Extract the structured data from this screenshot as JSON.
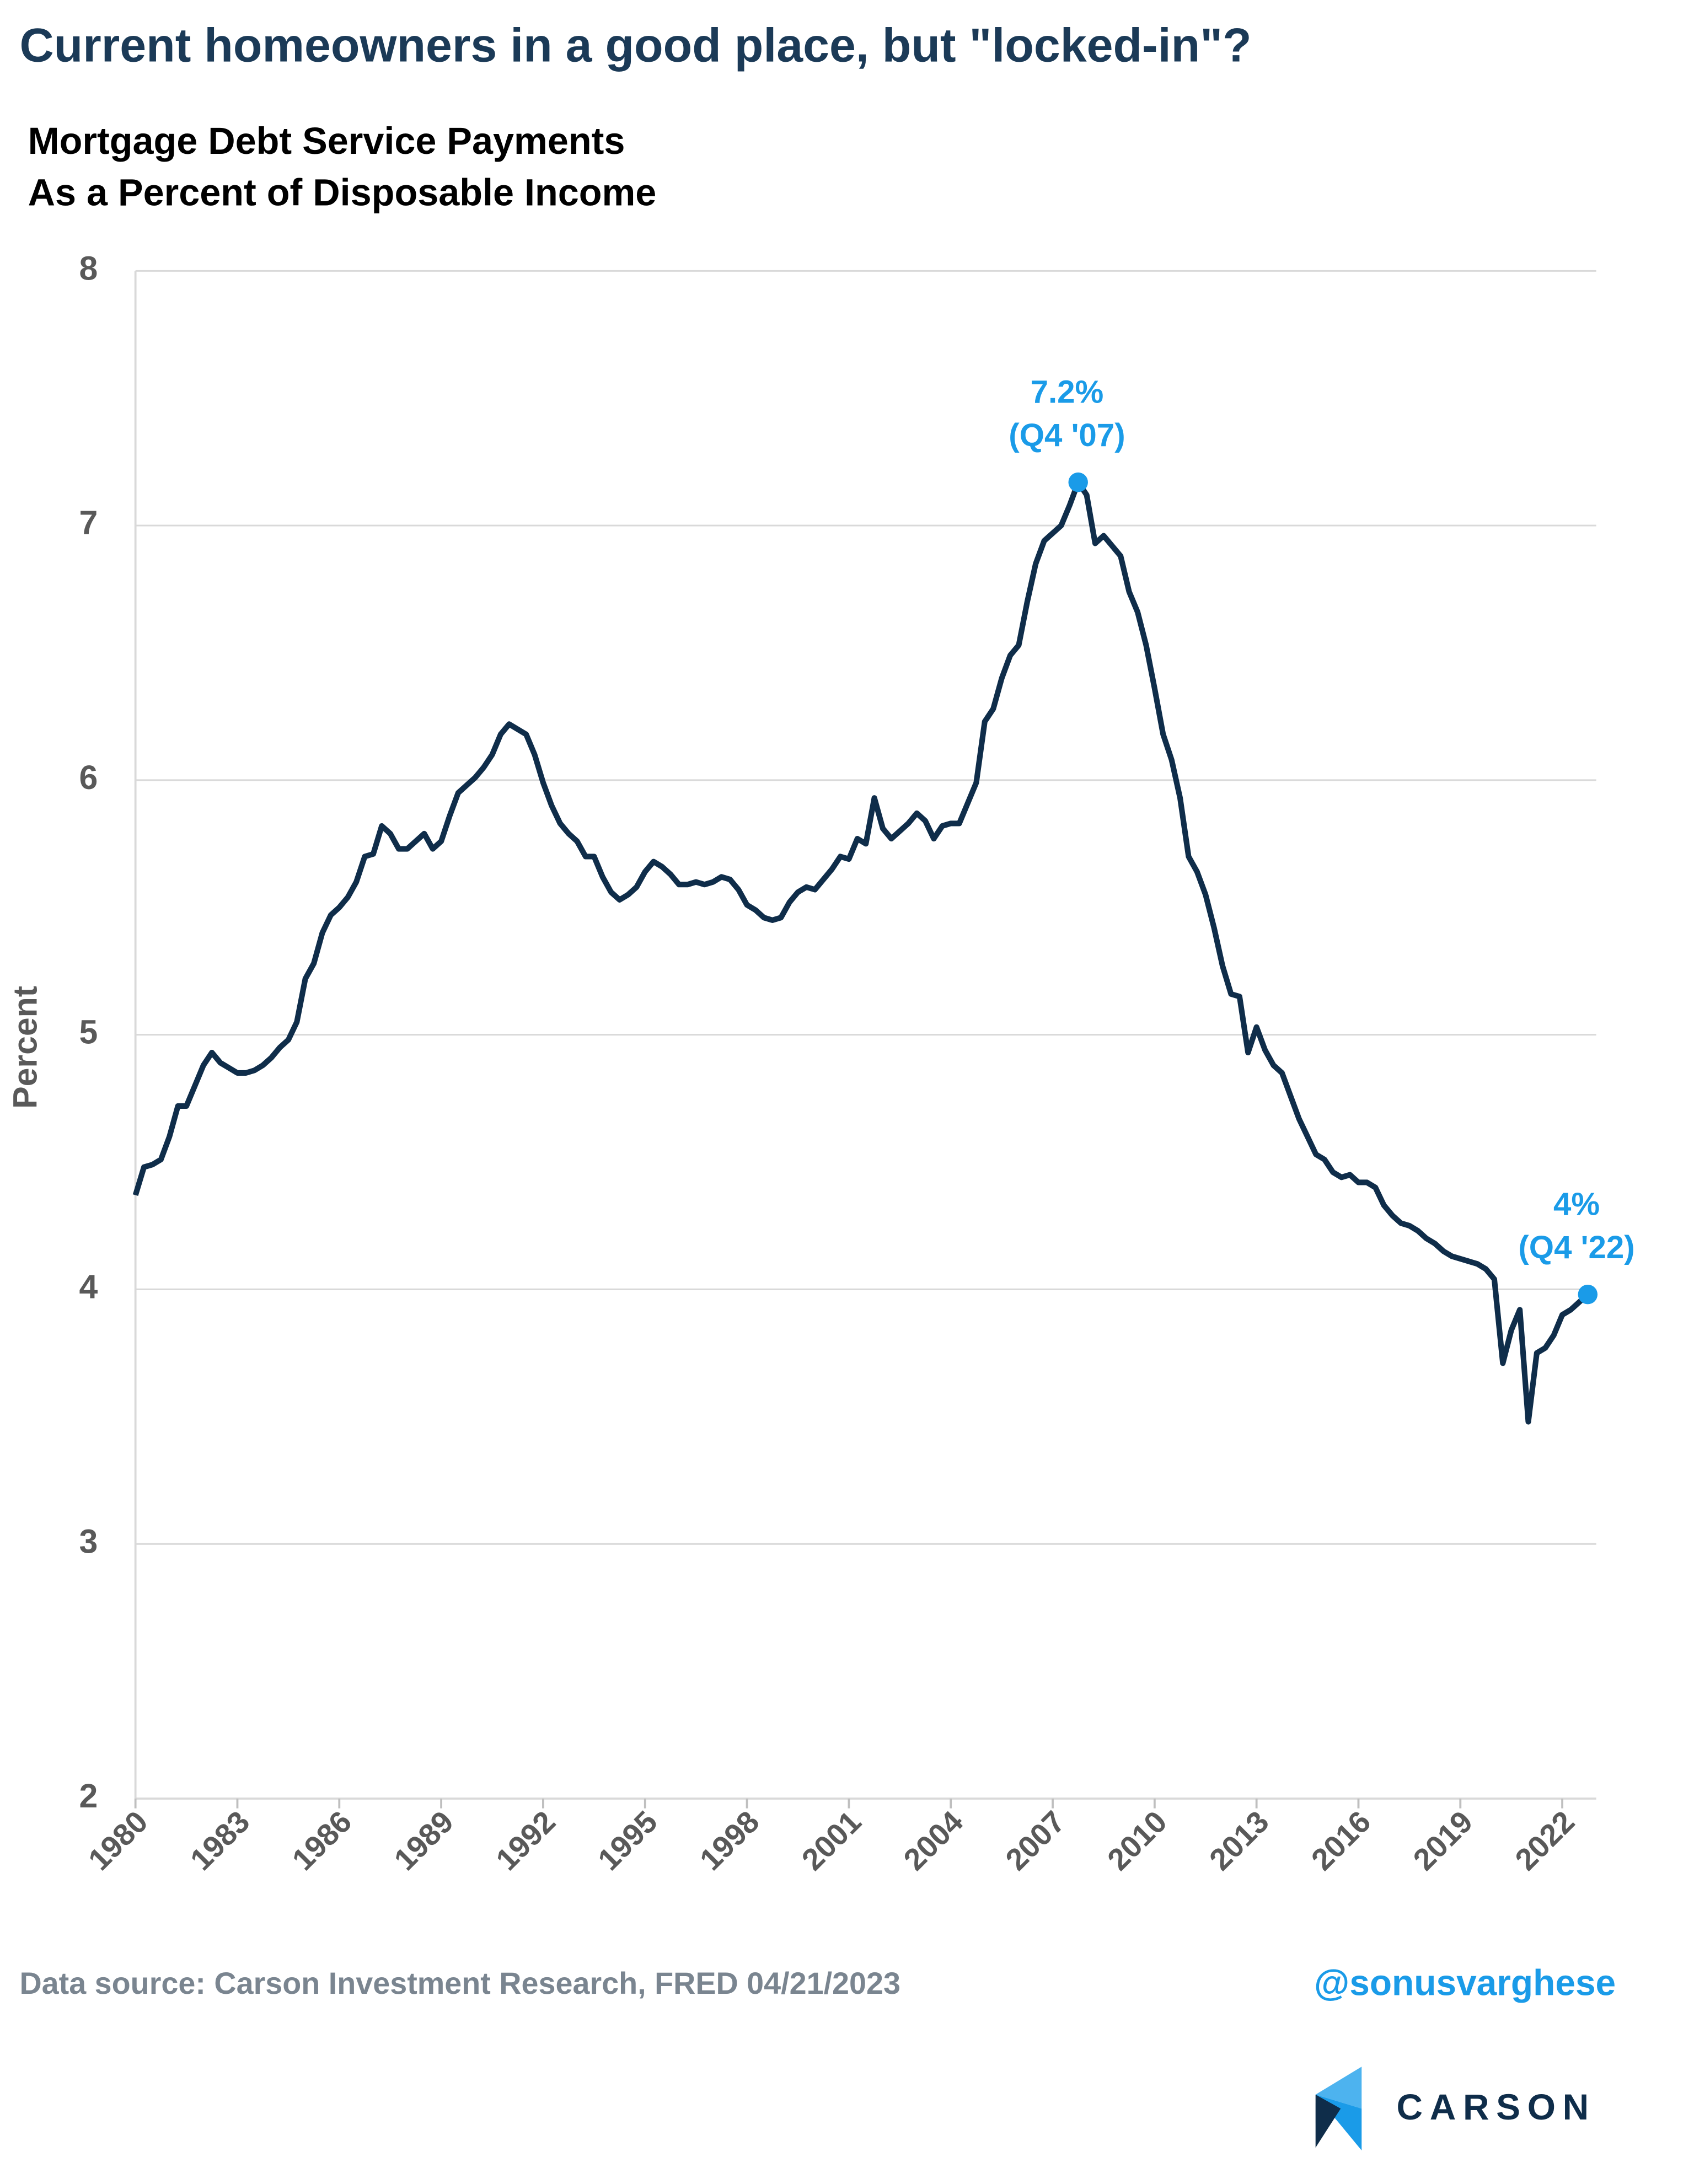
{
  "chart_data": {
    "type": "line",
    "title": "Current homeowners in a good place, but \"locked-in\"?",
    "subtitle": [
      "Mortgage Debt Service Payments",
      "As a Percent of Disposable Income"
    ],
    "ylabel": "Percent",
    "source": "Data source: Carson Investment Research, FRED   04/21/2023",
    "handle": "@sonusvarghese",
    "logo": "CARSON",
    "x": [
      1980,
      1980.25,
      1980.5,
      1980.75,
      1981,
      1981.25,
      1981.5,
      1981.75,
      1982,
      1982.25,
      1982.5,
      1982.75,
      1983,
      1983.25,
      1983.5,
      1983.75,
      1984,
      1984.25,
      1984.5,
      1984.75,
      1985,
      1985.25,
      1985.5,
      1985.75,
      1986,
      1986.25,
      1986.5,
      1986.75,
      1987,
      1987.25,
      1987.5,
      1987.75,
      1988,
      1988.25,
      1988.5,
      1988.75,
      1989,
      1989.25,
      1989.5,
      1989.75,
      1990,
      1990.25,
      1990.5,
      1990.75,
      1991,
      1991.25,
      1991.5,
      1991.75,
      1992,
      1992.25,
      1992.5,
      1992.75,
      1993,
      1993.25,
      1993.5,
      1993.75,
      1994,
      1994.25,
      1994.5,
      1994.75,
      1995,
      1995.25,
      1995.5,
      1995.75,
      1996,
      1996.25,
      1996.5,
      1996.75,
      1997,
      1997.25,
      1997.5,
      1997.75,
      1998,
      1998.25,
      1998.5,
      1998.75,
      1999,
      1999.25,
      1999.5,
      1999.75,
      2000,
      2000.25,
      2000.5,
      2000.75,
      2001,
      2001.25,
      2001.5,
      2001.75,
      2002,
      2002.25,
      2002.5,
      2002.75,
      2003,
      2003.25,
      2003.5,
      2003.75,
      2004,
      2004.25,
      2004.5,
      2004.75,
      2005,
      2005.25,
      2005.5,
      2005.75,
      2006,
      2006.25,
      2006.5,
      2006.75,
      2007,
      2007.25,
      2007.5,
      2007.75,
      2008,
      2008.25,
      2008.5,
      2008.75,
      2009,
      2009.25,
      2009.5,
      2009.75,
      2010,
      2010.25,
      2010.5,
      2010.75,
      2011,
      2011.25,
      2011.5,
      2011.75,
      2012,
      2012.25,
      2012.5,
      2012.75,
      2013,
      2013.25,
      2013.5,
      2013.75,
      2014,
      2014.25,
      2014.5,
      2014.75,
      2015,
      2015.25,
      2015.5,
      2015.75,
      2016,
      2016.25,
      2016.5,
      2016.75,
      2017,
      2017.25,
      2017.5,
      2017.75,
      2018,
      2018.25,
      2018.5,
      2018.75,
      2019,
      2019.25,
      2019.5,
      2019.75,
      2020,
      2020.25,
      2020.5,
      2020.75,
      2021,
      2021.25,
      2021.5,
      2021.75,
      2022,
      2022.25,
      2022.5,
      2022.75
    ],
    "series": [
      {
        "color": "#0f2d4a",
        "values": [
          4.37,
          4.48,
          4.49,
          4.51,
          4.6,
          4.72,
          4.72,
          4.8,
          4.88,
          4.93,
          4.89,
          4.87,
          4.85,
          4.85,
          4.86,
          4.88,
          4.91,
          4.95,
          4.98,
          5.05,
          5.22,
          5.28,
          5.4,
          5.47,
          5.5,
          5.54,
          5.6,
          5.7,
          5.71,
          5.82,
          5.79,
          5.73,
          5.73,
          5.76,
          5.79,
          5.73,
          5.76,
          5.86,
          5.95,
          5.98,
          6.01,
          6.05,
          6.1,
          6.18,
          6.22,
          6.2,
          6.18,
          6.1,
          5.99,
          5.9,
          5.83,
          5.79,
          5.76,
          5.7,
          5.7,
          5.62,
          5.56,
          5.53,
          5.55,
          5.58,
          5.64,
          5.68,
          5.66,
          5.63,
          5.59,
          5.59,
          5.6,
          5.59,
          5.6,
          5.62,
          5.61,
          5.57,
          5.51,
          5.49,
          5.46,
          5.45,
          5.46,
          5.52,
          5.56,
          5.58,
          5.57,
          5.61,
          5.65,
          5.7,
          5.69,
          5.77,
          5.75,
          5.93,
          5.81,
          5.77,
          5.8,
          5.83,
          5.87,
          5.84,
          5.77,
          5.82,
          5.83,
          5.83,
          5.91,
          5.99,
          6.23,
          6.28,
          6.4,
          6.49,
          6.53,
          6.7,
          6.85,
          6.94,
          6.97,
          7.0,
          7.08,
          7.17,
          7.12,
          6.93,
          6.96,
          6.92,
          6.88,
          6.74,
          6.66,
          6.53,
          6.36,
          6.18,
          6.08,
          5.93,
          5.7,
          5.64,
          5.55,
          5.42,
          5.27,
          5.16,
          5.15,
          4.93,
          5.03,
          4.94,
          4.88,
          4.85,
          4.76,
          4.67,
          4.6,
          4.53,
          4.51,
          4.46,
          4.44,
          4.45,
          4.42,
          4.42,
          4.4,
          4.33,
          4.29,
          4.26,
          4.25,
          4.23,
          4.2,
          4.18,
          4.15,
          4.13,
          4.12,
          4.11,
          4.1,
          4.08,
          4.04,
          3.71,
          3.84,
          3.92,
          3.48,
          3.75,
          3.77,
          3.82,
          3.9,
          3.92,
          3.95,
          3.98
        ]
      }
    ],
    "annotations": [
      {
        "x": 2007.75,
        "label": [
          "7.2%",
          "(Q4 '07)"
        ],
        "color": "#1a9be8"
      },
      {
        "x": 2022.75,
        "label": [
          "4%",
          "(Q4 '22)"
        ],
        "color": "#1a9be8"
      }
    ],
    "xlim": [
      1980,
      2023
    ],
    "ylim": [
      2,
      8
    ],
    "xticks": [
      1980,
      1983,
      1986,
      1989,
      1992,
      1995,
      1998,
      2001,
      2004,
      2007,
      2010,
      2013,
      2016,
      2019,
      2022
    ],
    "yticks": [
      2,
      3,
      4,
      5,
      6,
      7,
      8
    ],
    "grid": true
  }
}
